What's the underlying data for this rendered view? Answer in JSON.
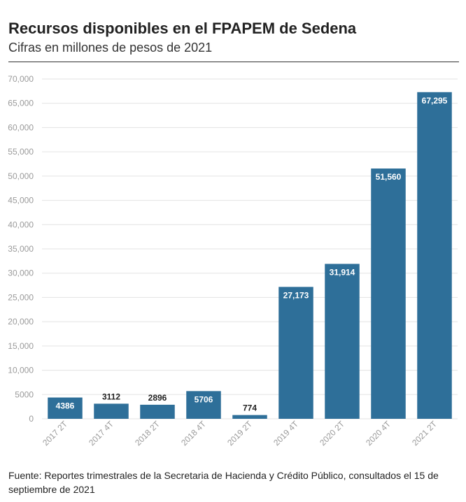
{
  "chart_data": {
    "type": "bar",
    "title": "Recursos disponibles en el FPAPEM de Sedena",
    "subtitle": "Cifras en millones de pesos de 2021",
    "categories": [
      "2017 2T",
      "2017 4T",
      "2018 2T",
      "2018 4T",
      "2019 2T",
      "2019 4T",
      "2020 2T",
      "2020 4T",
      "2021 2T"
    ],
    "values": [
      4386,
      3112,
      2896,
      5706,
      774,
      27173,
      31914,
      51560,
      67295
    ],
    "value_labels": [
      "4386",
      "3112",
      "2896",
      "5706",
      "774",
      "27,173",
      "31,914",
      "51,560",
      "67,295"
    ],
    "ylim": [
      0,
      70000
    ],
    "yticks": [
      0,
      5000,
      10000,
      15000,
      20000,
      25000,
      30000,
      35000,
      40000,
      45000,
      50000,
      55000,
      60000,
      65000,
      70000
    ],
    "ytick_labels": [
      "0",
      "5000",
      "10,000",
      "15,000",
      "20,000",
      "25,000",
      "30,000",
      "35,000",
      "40,000",
      "45,000",
      "50,000",
      "55,000",
      "60,000",
      "65,000",
      "70,000"
    ],
    "xlabel": "",
    "ylabel": "",
    "grid": true,
    "bar_color": "#2e6f99"
  },
  "footer": "Fuente: Reportes trimestrales de la Secretaria de Hacienda y Crédito Público, consultados el 15 de septiembre de 2021"
}
